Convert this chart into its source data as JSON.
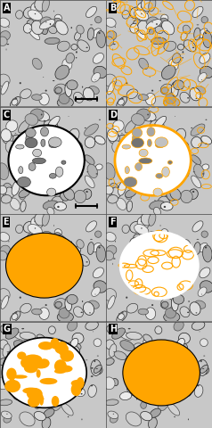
{
  "figsize": [
    2.38,
    4.8
  ],
  "dpi": 100,
  "panel_labels": [
    "A",
    "B",
    "C",
    "D",
    "E",
    "F",
    "G",
    "H"
  ],
  "nrows": 4,
  "ncols": 2,
  "bg_color": "#c8c8c8",
  "orange_color": "#FFA500",
  "white_color": "#ffffff",
  "black_color": "#000000",
  "label_bg": "#000000",
  "label_fg": "#ffffff",
  "label_fontsize": 7
}
